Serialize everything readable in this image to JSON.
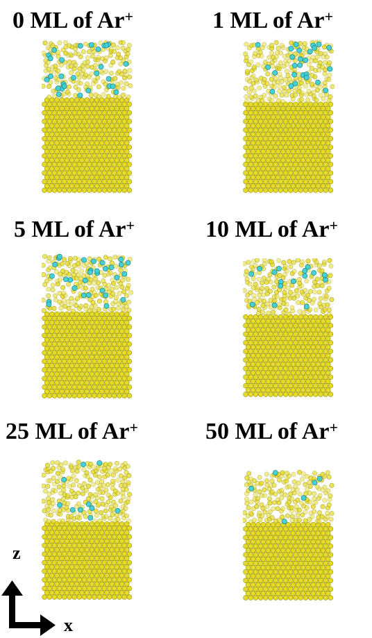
{
  "panels": [
    {
      "count": "0",
      "label_suffix": "ML of Ar",
      "superscript": "+",
      "ions": 28,
      "ion_depth": 0.35,
      "disorder_depth": 0.38
    },
    {
      "count": "1",
      "label_suffix": "ML of Ar",
      "superscript": "+",
      "ions": 26,
      "ion_depth": 0.32,
      "disorder_depth": 0.4
    },
    {
      "count": "5",
      "label_suffix": "ML of Ar",
      "superscript": "+",
      "ions": 30,
      "ion_depth": 0.38,
      "disorder_depth": 0.42
    },
    {
      "count": "10",
      "label_suffix": "ML of Ar",
      "superscript": "+",
      "ions": 16,
      "ion_depth": 0.35,
      "disorder_depth": 0.42
    },
    {
      "count": "25",
      "label_suffix": "ML of Ar",
      "superscript": "+",
      "ions": 10,
      "ion_depth": 0.45,
      "disorder_depth": 0.46
    },
    {
      "count": "50",
      "label_suffix": "ML of Ar",
      "superscript": "+",
      "ions": 6,
      "ion_depth": 0.38,
      "disorder_depth": 0.4
    }
  ],
  "axes": {
    "vertical": "z",
    "horizontal": "x"
  },
  "colors": {
    "substrate": "#e6dc28",
    "substrate_edge": "#a39a10",
    "ion": "#3fd0d6",
    "ion_edge": "#157f86"
  }
}
